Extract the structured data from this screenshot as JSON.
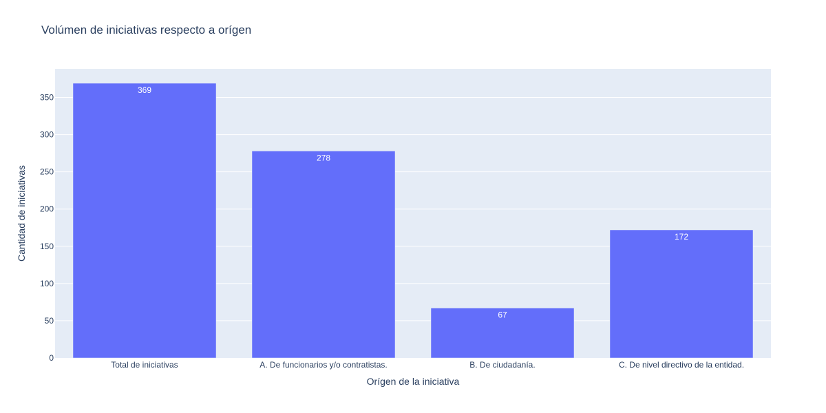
{
  "chart_data": {
    "type": "bar",
    "title": "Volúmen de iniciativas respecto a orígen",
    "xlabel": "Orígen de la iniciativa",
    "ylabel": "Cantidad de iniciativas",
    "categories": [
      "Total de iniciativas",
      "A. De funcionarios y/o contratistas.",
      "B. De ciudadanía.",
      "C. De nivel directivo de la entidad."
    ],
    "values": [
      369,
      278,
      67,
      172
    ],
    "ylim": [
      0,
      388.4
    ],
    "yticks": [
      0,
      50,
      100,
      150,
      200,
      250,
      300,
      350
    ],
    "grid": true,
    "colors": {
      "bar": "#636efa",
      "plot_bg": "#e5ecf6",
      "grid": "#ffffff",
      "text": "#2a3f5f"
    }
  }
}
